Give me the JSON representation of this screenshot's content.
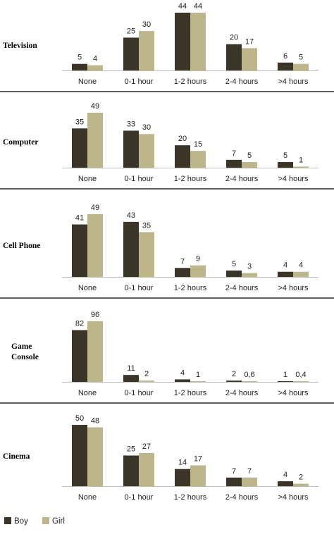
{
  "chart_data": [
    {
      "type": "bar",
      "panel_label": "Television",
      "categories": [
        "None",
        "0-1 hour",
        "1-2 hours",
        "2-4 hours",
        ">4 hours"
      ],
      "series": [
        {
          "name": "Boy",
          "values": [
            5,
            25,
            44,
            20,
            6
          ],
          "labels": [
            "5",
            "25",
            "44",
            "20",
            "6"
          ]
        },
        {
          "name": "Girl",
          "values": [
            4,
            30,
            44,
            17,
            5
          ],
          "labels": [
            "4",
            "30",
            "44",
            "17",
            "5"
          ]
        }
      ],
      "ymax": 44
    },
    {
      "type": "bar",
      "panel_label": "Computer",
      "categories": [
        "None",
        "0-1 hour",
        "1-2 hours",
        "2-4 hours",
        ">4 hours"
      ],
      "series": [
        {
          "name": "Boy",
          "values": [
            35,
            33,
            20,
            7,
            5
          ],
          "labels": [
            "35",
            "33",
            "20",
            "7",
            "5"
          ]
        },
        {
          "name": "Girl",
          "values": [
            49,
            30,
            15,
            5,
            1
          ],
          "labels": [
            "49",
            "30",
            "15",
            "5",
            "1"
          ]
        }
      ],
      "ymax": 49
    },
    {
      "type": "bar",
      "panel_label": "Cell Phone",
      "categories": [
        "None",
        "0-1 hour",
        "1-2 hours",
        "2-4 hours",
        ">4 hours"
      ],
      "series": [
        {
          "name": "Boy",
          "values": [
            41,
            43,
            7,
            5,
            4
          ],
          "labels": [
            "41",
            "43",
            "7",
            "5",
            "4"
          ]
        },
        {
          "name": "Girl",
          "values": [
            49,
            35,
            9,
            3,
            4
          ],
          "labels": [
            "49",
            "35",
            "9",
            "3",
            "4"
          ]
        }
      ],
      "ymax": 49
    },
    {
      "type": "bar",
      "panel_label": "Game Console",
      "categories": [
        "None",
        "0-1 hour",
        "1-2 hours",
        "2-4 hours",
        ">4 hours"
      ],
      "series": [
        {
          "name": "Boy",
          "values": [
            82,
            11,
            4,
            2,
            1
          ],
          "labels": [
            "82",
            "11",
            "4",
            "2",
            "1"
          ]
        },
        {
          "name": "Girl",
          "values": [
            96,
            2,
            1,
            0.6,
            0.4
          ],
          "labels": [
            "96",
            "2",
            "1",
            "0,6",
            "0,4"
          ]
        }
      ],
      "ymax": 96
    },
    {
      "type": "bar",
      "panel_label": "Cinema",
      "categories": [
        "None",
        "0-1 hour",
        "1-2 hours",
        "2-4 hours",
        ">4 hours"
      ],
      "series": [
        {
          "name": "Boy",
          "values": [
            50,
            25,
            14,
            7,
            4
          ],
          "labels": [
            "50",
            "25",
            "14",
            "7",
            "4"
          ]
        },
        {
          "name": "Girl",
          "values": [
            48,
            27,
            17,
            7,
            2
          ],
          "labels": [
            "48",
            "27",
            "17",
            "7",
            "2"
          ]
        }
      ],
      "ymax": 50
    }
  ],
  "legend": [
    {
      "label": "Boy",
      "color": "#3b3527"
    },
    {
      "label": "Girl",
      "color": "#bdb68a"
    }
  ],
  "colors": {
    "boy": "#3b3527",
    "girl": "#bdb68a"
  }
}
